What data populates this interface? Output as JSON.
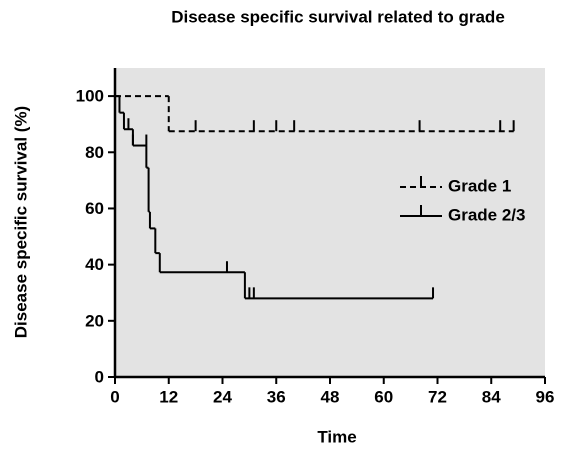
{
  "chart_data": {
    "type": "survival",
    "title": "Disease specific survival related to grade",
    "x_label": "Time",
    "y_label": "Disease specific survival (%)",
    "xlim": [
      0,
      96
    ],
    "ylim": [
      0,
      110
    ],
    "xticks": [
      0,
      12,
      24,
      36,
      48,
      60,
      72,
      84,
      96
    ],
    "yticks": [
      0,
      20,
      40,
      60,
      80,
      100
    ],
    "background": "#e3e3e3",
    "series": [
      {
        "name": "Grade 1",
        "color": "#000000",
        "dashed": true,
        "x": [
          0,
          12,
          89
        ],
        "values": [
          100,
          87.5,
          87.5
        ],
        "censored_x": [
          18,
          31,
          36,
          40,
          68,
          86,
          89
        ],
        "censored_values": [
          87.5,
          87.5,
          87.5,
          87.5,
          87.5,
          87.5,
          87.5
        ]
      },
      {
        "name": "Grade 2/3",
        "color": "#000000",
        "dashed": false,
        "x": [
          0,
          1,
          2,
          4,
          7,
          7.5,
          7.8,
          9,
          10,
          29,
          71
        ],
        "values": [
          100,
          94.1,
          88.2,
          82.4,
          74.5,
          58.8,
          52.9,
          44.1,
          37.3,
          28,
          28
        ],
        "censored_x": [
          3,
          4,
          7,
          25,
          30,
          31,
          71
        ],
        "censored_values": [
          88.2,
          82.4,
          82.4,
          37.3,
          28,
          28,
          28
        ]
      }
    ]
  }
}
